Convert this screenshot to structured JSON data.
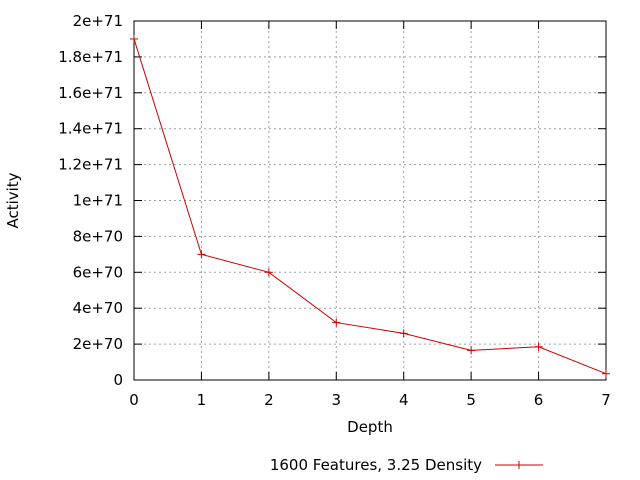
{
  "chart_data": {
    "type": "line",
    "title": "",
    "xlabel": "Depth",
    "ylabel": "Activity",
    "xlim": [
      0,
      7
    ],
    "ylim": [
      0,
      2e+71
    ],
    "grid": true,
    "legend_position": "bottom-center",
    "x_ticks": [
      0,
      1,
      2,
      3,
      4,
      5,
      6,
      7
    ],
    "x_tick_labels": [
      "0",
      "1",
      "2",
      "3",
      "4",
      "5",
      "6",
      "7"
    ],
    "y_ticks": [
      0,
      2e+70,
      4e+70,
      6e+70,
      8e+70,
      1e+71,
      1.2e+71,
      1.4e+71,
      1.6e+71,
      1.8e+71,
      2e+71
    ],
    "y_tick_labels": [
      "0",
      "2e+70",
      "4e+70",
      "6e+70",
      "8e+70",
      "1e+71",
      "1.2e+71",
      "1.4e+71",
      "1.6e+71",
      "1.8e+71",
      "2e+71"
    ],
    "series": [
      {
        "name": "1600 Features, 3.25 Density",
        "color": "#cc0000",
        "marker": "plus",
        "x": [
          0,
          1,
          2,
          3,
          4,
          5,
          6,
          7
        ],
        "y": [
          1.9e+71,
          7e+70,
          6e+70,
          3.2e+70,
          2.6e+70,
          1.65e+70,
          1.85e+70,
          3.5e+69
        ]
      }
    ]
  }
}
